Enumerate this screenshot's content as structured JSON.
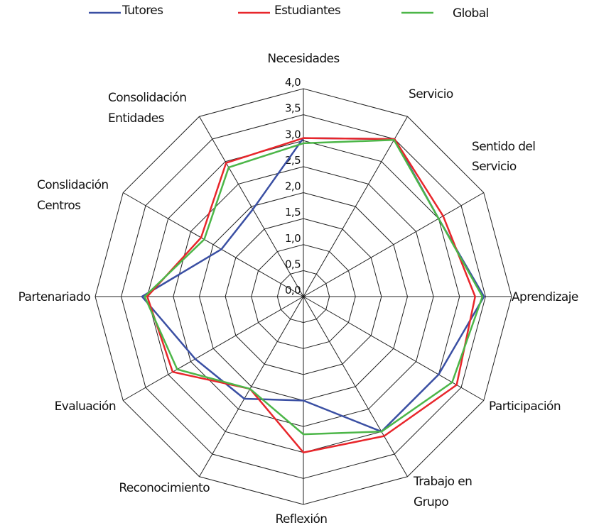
{
  "chart_data": {
    "type": "radar",
    "categories": [
      [
        "Necesidades"
      ],
      [
        "Servicio"
      ],
      [
        "Sentido del",
        "Servicio"
      ],
      [
        "Aprendizaje"
      ],
      [
        "Participación"
      ],
      [
        "Trabajo en",
        "Grupo"
      ],
      [
        "Reflexión"
      ],
      [
        "Reconocimiento"
      ],
      [
        "Evaluación"
      ],
      [
        "Partenariado"
      ],
      [
        "Conslidación",
        "Centros"
      ],
      [
        "Consolidación",
        "Entidades"
      ]
    ],
    "series": [
      {
        "name": "Tutores",
        "color": "#3a4fa3",
        "values": [
          3.05,
          3.5,
          3.0,
          3.47,
          3.0,
          3.0,
          2.0,
          2.27,
          2.4,
          3.1,
          1.82,
          1.94
        ]
      },
      {
        "name": "Estudiantes",
        "color": "#e8262b",
        "values": [
          3.05,
          3.5,
          3.1,
          3.3,
          3.4,
          3.1,
          3.0,
          2.05,
          2.9,
          3.0,
          2.27,
          2.97
        ]
      },
      {
        "name": "Global",
        "color": "#4cb648",
        "values": [
          2.95,
          3.48,
          3.0,
          3.44,
          3.3,
          3.0,
          2.65,
          2.05,
          2.8,
          3.05,
          2.2,
          2.87
        ]
      }
    ],
    "ylim": [
      0,
      4
    ],
    "yticks": [
      {
        "value": 0,
        "label": "0,0"
      },
      {
        "value": 0.5,
        "label": "0,5"
      },
      {
        "value": 1,
        "label": "1,0"
      },
      {
        "value": 1.5,
        "label": "1,5"
      },
      {
        "value": 2,
        "label": "2,0"
      },
      {
        "value": 2.5,
        "label": "2,5"
      },
      {
        "value": 3,
        "label": "3,0"
      },
      {
        "value": 3.5,
        "label": "3,5"
      },
      {
        "value": 4,
        "label": "4,0"
      }
    ],
    "grid": true
  }
}
